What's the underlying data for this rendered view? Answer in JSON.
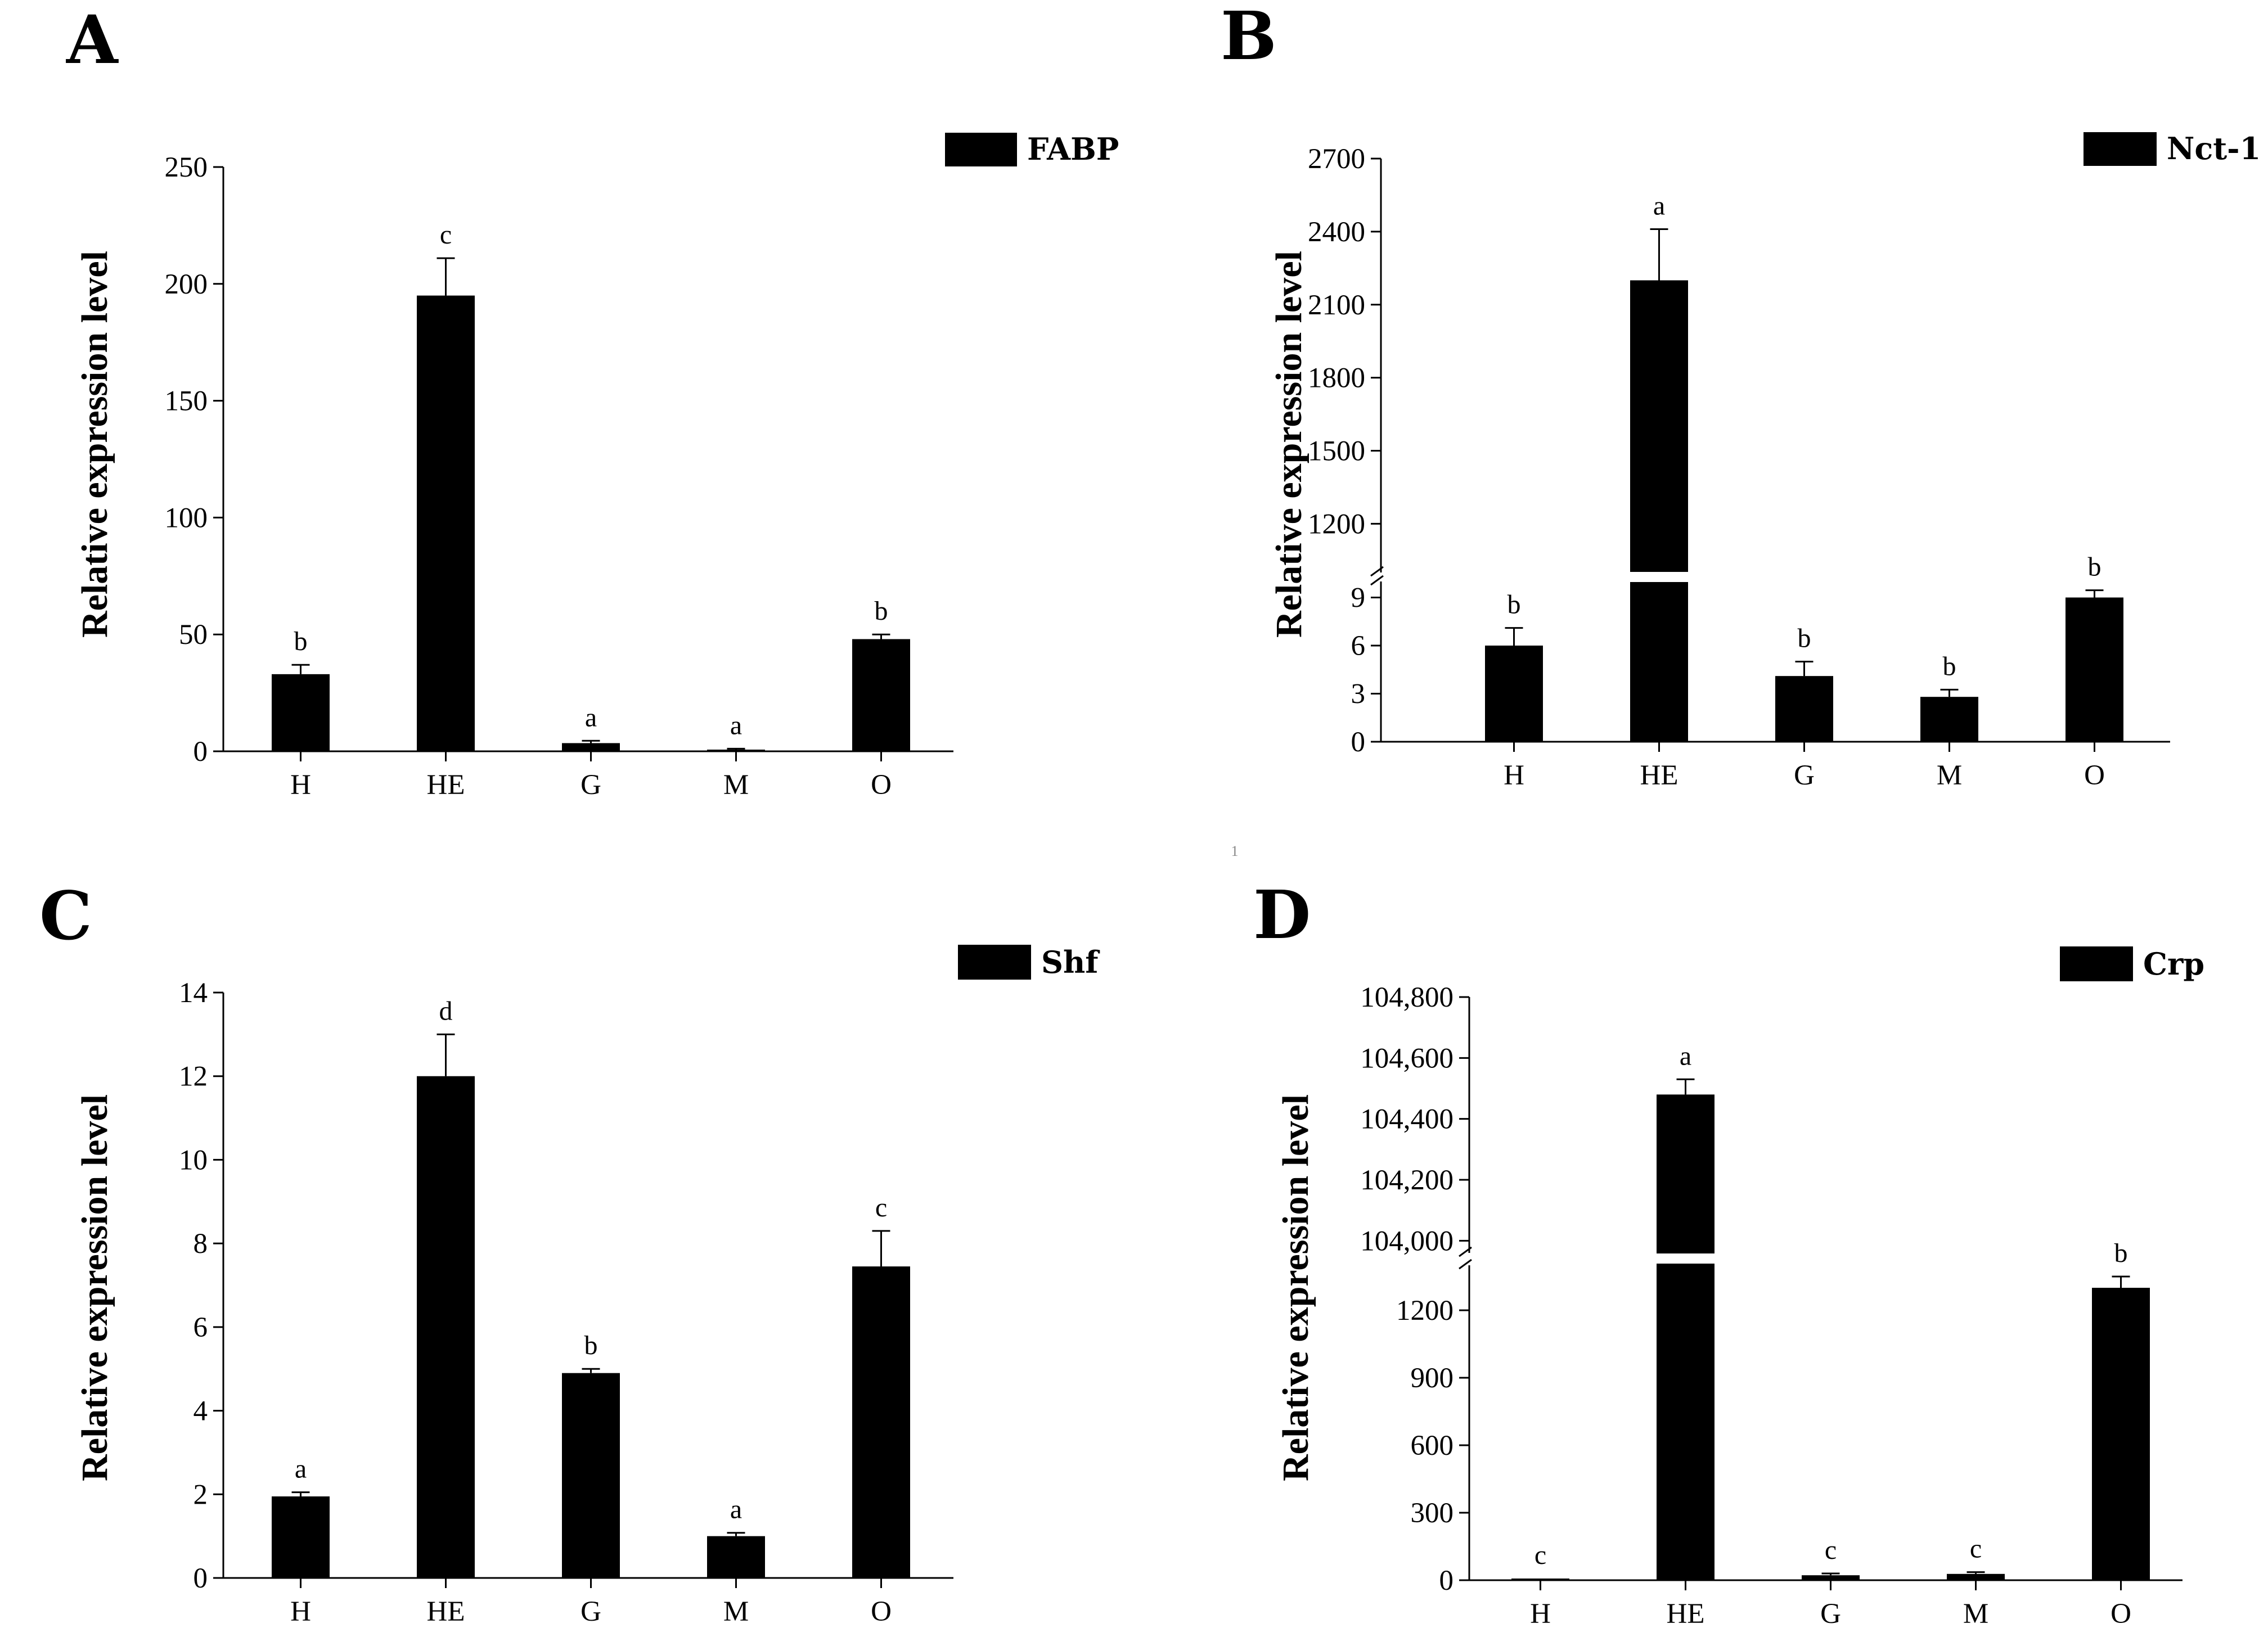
{
  "page_mark": "1",
  "chart_data": [
    {
      "type": "bar",
      "panel": "A",
      "legend": "FABP",
      "ylabel": "Relative expression level",
      "categories": [
        "H",
        "HE",
        "G",
        "M",
        "O"
      ],
      "values": [
        33,
        195,
        3.5,
        0.5,
        48
      ],
      "errors": [
        4,
        16,
        1,
        0.6,
        2
      ],
      "significance": [
        "b",
        "c",
        "a",
        "a",
        "b"
      ],
      "ylim": [
        0,
        250
      ],
      "yticks": [
        {
          "value": 0,
          "label": "0"
        },
        {
          "value": 50,
          "label": "50"
        },
        {
          "value": 100,
          "label": "100"
        },
        {
          "value": 150,
          "label": "150"
        },
        {
          "value": 200,
          "label": "200"
        },
        {
          "value": 250,
          "label": "250"
        }
      ]
    },
    {
      "type": "bar",
      "panel": "B",
      "legend": "Nct-1",
      "ylabel": "Relative expression level",
      "categories": [
        "H",
        "HE",
        "G",
        "M",
        "O"
      ],
      "values": [
        6,
        2200,
        4.1,
        2.8,
        9
      ],
      "errors": [
        1.1,
        210,
        0.9,
        0.45,
        0.45
      ],
      "significance": [
        "b",
        "a",
        "b",
        "b",
        "b"
      ],
      "broken_axis": true,
      "lower_range": [
        0,
        10
      ],
      "upper_range": [
        1000,
        2700
      ],
      "lower_yticks": [
        {
          "value": 0,
          "label": "0"
        },
        {
          "value": 3,
          "label": "3"
        },
        {
          "value": 6,
          "label": "6"
        },
        {
          "value": 9,
          "label": "9"
        }
      ],
      "upper_yticks": [
        {
          "value": 1200,
          "label": "1200"
        },
        {
          "value": 1500,
          "label": "1500"
        },
        {
          "value": 1800,
          "label": "1800"
        },
        {
          "value": 2100,
          "label": "2100"
        },
        {
          "value": 2400,
          "label": "2400"
        },
        {
          "value": 2700,
          "label": "2700"
        }
      ]
    },
    {
      "type": "bar",
      "panel": "C",
      "legend": "Shf",
      "ylabel": "Relative expression level",
      "categories": [
        "H",
        "HE",
        "G",
        "M",
        "O"
      ],
      "values": [
        1.95,
        12,
        4.9,
        1.0,
        7.45
      ],
      "errors": [
        0.1,
        1.0,
        0.1,
        0.08,
        0.85
      ],
      "significance": [
        "a",
        "d",
        "b",
        "a",
        "c"
      ],
      "ylim": [
        0,
        14
      ],
      "yticks": [
        {
          "value": 0,
          "label": "0"
        },
        {
          "value": 2,
          "label": "2"
        },
        {
          "value": 4,
          "label": "4"
        },
        {
          "value": 6,
          "label": "6"
        },
        {
          "value": 8,
          "label": "8"
        },
        {
          "value": 10,
          "label": "10"
        },
        {
          "value": 12,
          "label": "12"
        },
        {
          "value": 14,
          "label": "14"
        }
      ]
    },
    {
      "type": "bar",
      "panel": "D",
      "legend": "Crp",
      "ylabel": "Relative expression level",
      "categories": [
        "H",
        "HE",
        "G",
        "M",
        "O"
      ],
      "values": [
        4,
        104480,
        22,
        28,
        1300
      ],
      "errors": [
        3,
        50,
        8,
        8,
        50
      ],
      "significance": [
        "c",
        "a",
        "c",
        "c",
        "b"
      ],
      "broken_axis": true,
      "lower_range": [
        0,
        1400
      ],
      "upper_range": [
        103960,
        104800
      ],
      "lower_yticks": [
        {
          "value": 0,
          "label": "0"
        },
        {
          "value": 300,
          "label": "300"
        },
        {
          "value": 600,
          "label": "600"
        },
        {
          "value": 900,
          "label": "900"
        },
        {
          "value": 1200,
          "label": "1200"
        }
      ],
      "upper_yticks": [
        {
          "value": 104000,
          "label": "104,000"
        },
        {
          "value": 104200,
          "label": "104,200"
        },
        {
          "value": 104400,
          "label": "104,400"
        },
        {
          "value": 104600,
          "label": "104,600"
        },
        {
          "value": 104800,
          "label": "104,800"
        }
      ]
    }
  ]
}
